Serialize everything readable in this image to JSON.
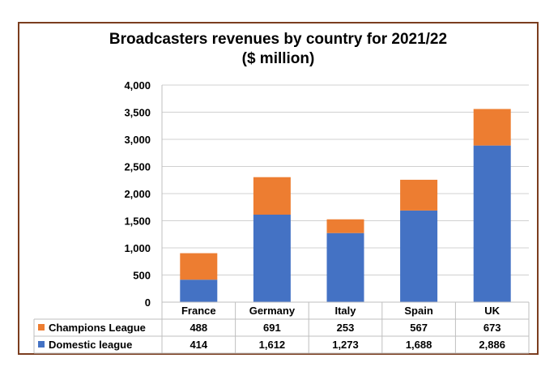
{
  "chart_data": {
    "type": "bar",
    "stacked": true,
    "title": "Broadcasters revenues by country for 2021/22",
    "subtitle": "($ million)",
    "categories": [
      "France",
      "Germany",
      "Italy",
      "Spain",
      "UK"
    ],
    "series": [
      {
        "name": "Domestic league",
        "color": "#4472c4",
        "values": [
          414,
          1612,
          1273,
          1688,
          2886
        ],
        "labels": [
          "414",
          "1,612",
          "1,273",
          "1,688",
          "2,886"
        ]
      },
      {
        "name": "Champions League",
        "color": "#ed7d31",
        "values": [
          488,
          691,
          253,
          567,
          673
        ],
        "labels": [
          "488",
          "691",
          "253",
          "567",
          "673"
        ]
      }
    ],
    "ylim": [
      0,
      4000
    ],
    "yticks": [
      0,
      500,
      1000,
      1500,
      2000,
      2500,
      3000,
      3500,
      4000
    ],
    "ytick_labels": [
      "0",
      "500",
      "1,000",
      "1,500",
      "2,000",
      "2,500",
      "3,000",
      "3,500",
      "4,000"
    ],
    "grid": true,
    "legend": "data-table"
  }
}
